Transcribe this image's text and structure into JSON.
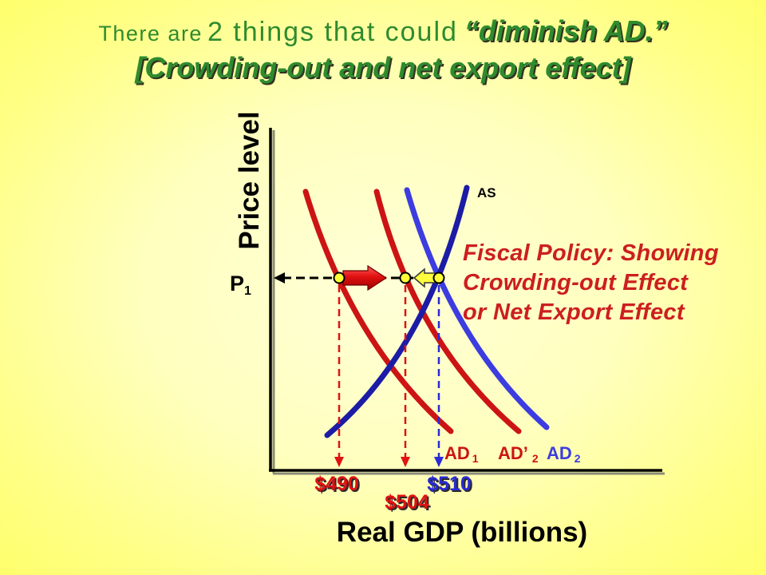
{
  "title": {
    "line1": {
      "intro": "There are",
      "middle": "2 things that could",
      "emphasis": "“diminish AD.”"
    },
    "line2": "[Crowding-out and net export effect]"
  },
  "diagram": {
    "y_axis_label": "Price level",
    "x_axis_label": "Real GDP (billions)",
    "price_level_label": {
      "main": "P",
      "sub": "1"
    },
    "as_curve": {
      "label": "AS",
      "color": "#1c1ca6"
    },
    "ad_curves": [
      {
        "main": "AD",
        "sub": "1",
        "color": "#cc1414"
      },
      {
        "main": "AD’",
        "sub": "2",
        "color": "#cc1414"
      },
      {
        "main": "AD",
        "sub": "2",
        "color": "#3c3ce0"
      }
    ],
    "gdp_values": [
      {
        "value": "$490",
        "color": "#e01212"
      },
      {
        "value": "$504",
        "color": "#e01212"
      },
      {
        "value": "$510",
        "color": "#2a2ad6"
      }
    ],
    "annotation": [
      "Fiscal Policy: Showing",
      "Crowding-out Effect",
      "or Net Export Effect"
    ]
  }
}
